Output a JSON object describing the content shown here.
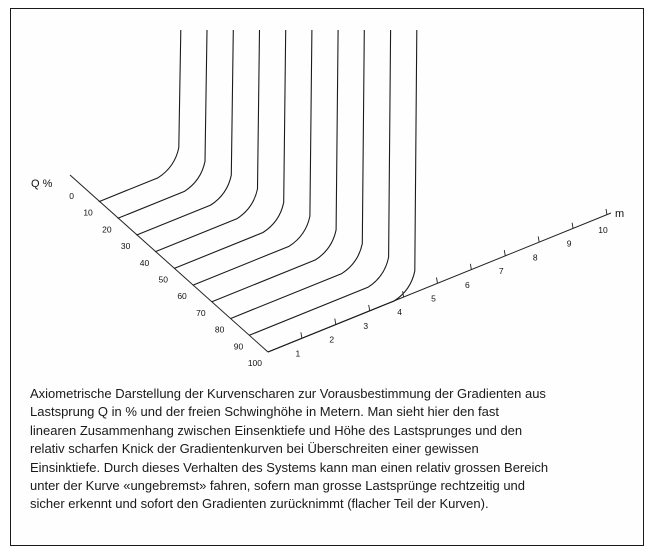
{
  "chart_data": {
    "type": "line",
    "title": "",
    "q_axis_label": "Q %",
    "m_axis_label": "m",
    "q_ticks": [
      "0",
      "10",
      "20",
      "30",
      "40",
      "50",
      "60",
      "70",
      "80",
      "90",
      "100"
    ],
    "m_ticks": [
      "1",
      "2",
      "3",
      "4",
      "5",
      "6",
      "7",
      "8",
      "9",
      "10"
    ],
    "curves_q_percent": [
      10,
      20,
      30,
      40,
      50,
      60,
      70,
      80,
      90,
      100
    ],
    "grid": false,
    "legend": "none"
  },
  "caption": {
    "lines": [
      "Axiometrische Darstellung der Kurvenscharen zur Vorausbestimmung der Gradienten aus",
      "Lastsprung Q in % und der freien Schwinghöhe in Metern. Man sieht hier den fast",
      "linearen Zusammenhang zwischen Einsenktiefe und Höhe des Lastsprunges und den",
      "relativ scharfen Knick der Gradientenkurven bei Überschreiten einer gewissen",
      "Einsinktiefe. Durch dieses Verhalten des Systems kann man einen relativ grossen Bereich",
      "unter der Kurve «ungebremst» fahren, sofern man grosse Lastsprünge rechtzeitig und",
      "sicher erkennt und sofort den Gradienten zurücknimmt (flacher Teil der Kurven)."
    ]
  }
}
